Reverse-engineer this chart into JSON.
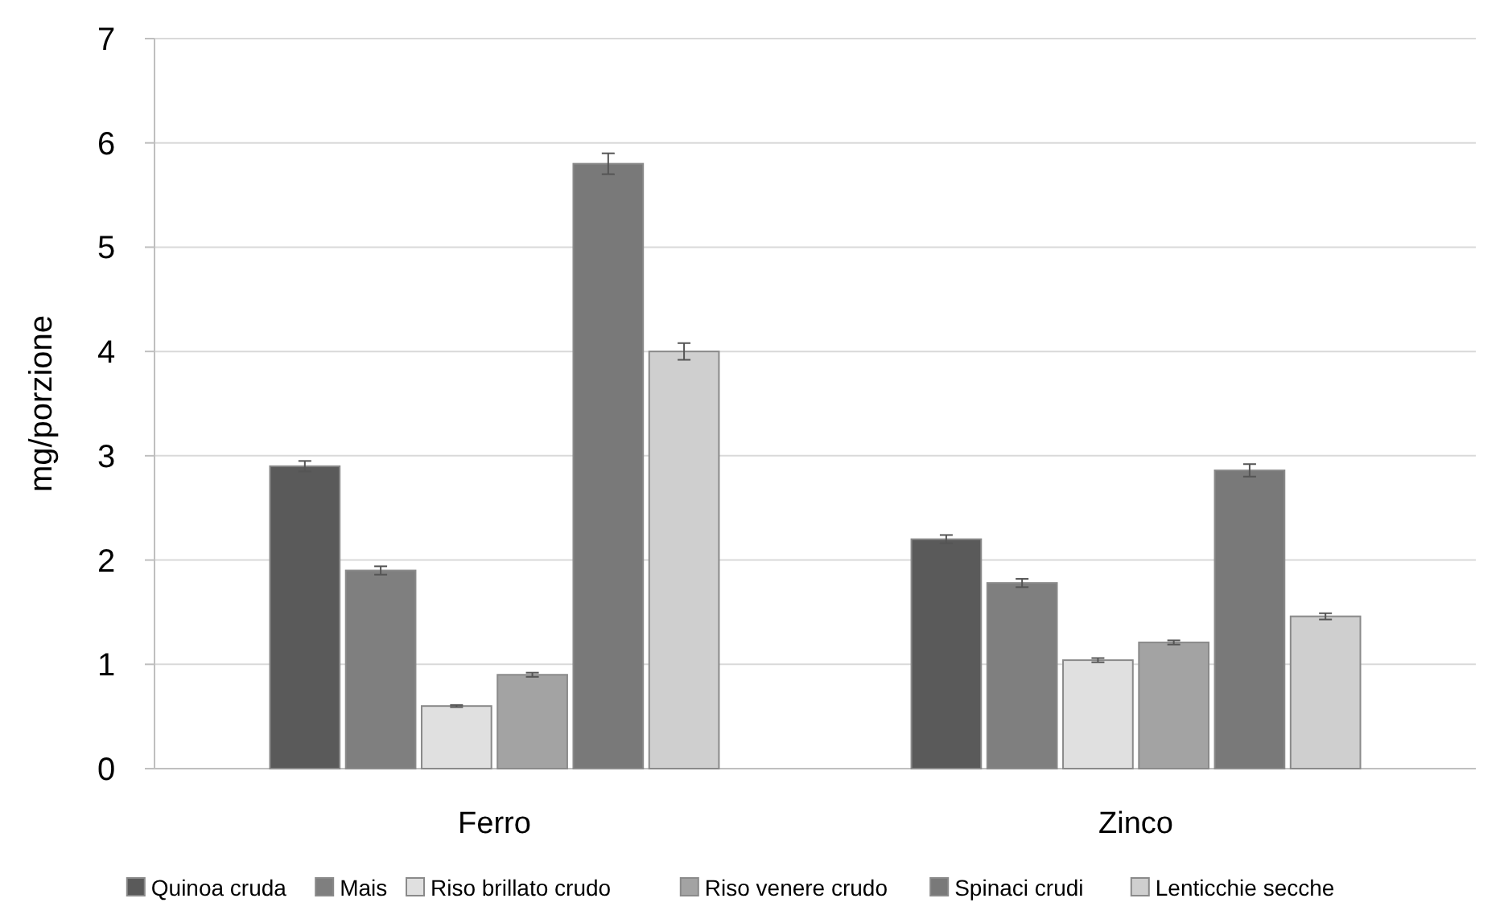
{
  "chart_data": {
    "type": "bar",
    "ylabel": "mg/porzione",
    "categories": [
      "Ferro",
      "Zinco"
    ],
    "series": [
      {
        "name": "Quinoa cruda",
        "color": "#5a5a5a",
        "values": [
          2.9,
          2.2
        ],
        "errors": [
          0.05,
          0.04
        ]
      },
      {
        "name": "Mais",
        "color": "#7f7f7f",
        "values": [
          1.9,
          1.78
        ],
        "errors": [
          0.04,
          0.04
        ]
      },
      {
        "name": "Riso brillato crudo",
        "color": "#e0e0e0",
        "values": [
          0.6,
          1.04
        ],
        "errors": [
          0.01,
          0.02
        ]
      },
      {
        "name": "Riso venere crudo",
        "color": "#a3a3a3",
        "values": [
          0.9,
          1.21
        ],
        "errors": [
          0.02,
          0.02
        ]
      },
      {
        "name": "Spinaci crudi",
        "color": "#797979",
        "values": [
          5.8,
          2.86
        ],
        "errors": [
          0.1,
          0.06
        ]
      },
      {
        "name": "Lenticchie secche",
        "color": "#cfcfcf",
        "values": [
          4.0,
          1.46
        ],
        "errors": [
          0.08,
          0.03
        ]
      }
    ],
    "ylim": [
      0,
      7
    ],
    "yticks": [
      0,
      1,
      2,
      3,
      4,
      5,
      6,
      7
    ],
    "grid": "y",
    "legend": "bottom"
  }
}
